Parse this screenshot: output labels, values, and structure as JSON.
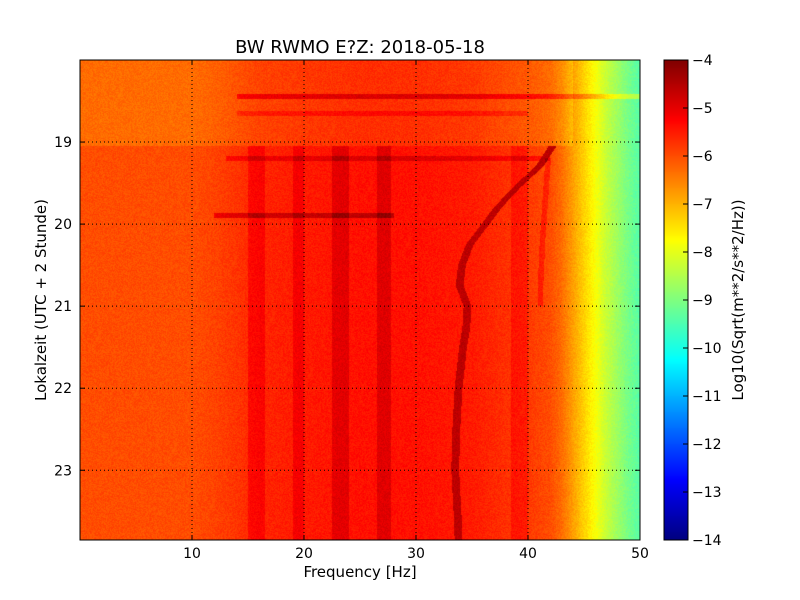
{
  "chart_data": {
    "type": "heatmap",
    "title": "BW RWMO E?Z: 2018-05-18",
    "xlabel": "Frequency [Hz]",
    "ylabel": "Lokalzeit (UTC + 2 Stunde)",
    "xlim": [
      0,
      50
    ],
    "ylim": [
      18.0,
      23.85
    ],
    "y_inverted": true,
    "grid": true,
    "x_ticks": [
      {
        "value": 10,
        "label": "10"
      },
      {
        "value": 20,
        "label": "20"
      },
      {
        "value": 30,
        "label": "30"
      },
      {
        "value": 40,
        "label": "40"
      },
      {
        "value": 50,
        "label": "50"
      }
    ],
    "y_ticks": [
      {
        "value": 19,
        "label": "19"
      },
      {
        "value": 20,
        "label": "20"
      },
      {
        "value": 21,
        "label": "21"
      },
      {
        "value": 22,
        "label": "22"
      },
      {
        "value": 23,
        "label": "23"
      }
    ],
    "colorbar": {
      "label": "Log10(Sqrt(m**2/s**2/Hz))",
      "range": [
        -14,
        -4
      ],
      "colormap": "jet",
      "ticks": [
        {
          "value": -4,
          "label": "−4"
        },
        {
          "value": -5,
          "label": "−5"
        },
        {
          "value": -6,
          "label": "−6"
        },
        {
          "value": -7,
          "label": "−7"
        },
        {
          "value": -8,
          "label": "−8"
        },
        {
          "value": -9,
          "label": "−9"
        },
        {
          "value": -10,
          "label": "−10"
        },
        {
          "value": -11,
          "label": "−11"
        },
        {
          "value": -12,
          "label": "−12"
        },
        {
          "value": -13,
          "label": "−13"
        },
        {
          "value": -14,
          "label": "−14"
        }
      ]
    },
    "background_level_by_frequency": [
      [
        0,
        -6.0
      ],
      [
        5,
        -6.0
      ],
      [
        10,
        -6.0
      ],
      [
        12,
        -5.9
      ],
      [
        16,
        -5.6
      ],
      [
        20,
        -5.5
      ],
      [
        25,
        -5.4
      ],
      [
        30,
        -5.4
      ],
      [
        35,
        -5.5
      ],
      [
        38,
        -5.7
      ],
      [
        40,
        -5.8
      ],
      [
        42,
        -6.0
      ],
      [
        43,
        -6.3
      ],
      [
        44,
        -6.8
      ],
      [
        45,
        -7.3
      ],
      [
        46,
        -7.8
      ],
      [
        47,
        -8.3
      ],
      [
        48,
        -8.7
      ],
      [
        49,
        -9.1
      ],
      [
        50,
        -9.4
      ]
    ],
    "segments": [
      {
        "t0": 18.0,
        "t1": 19.05,
        "shift": -0.3
      },
      {
        "t0": 19.05,
        "t1": 23.85,
        "shift": 0.0
      }
    ],
    "vertical_bands": [
      {
        "f0": 15.0,
        "f1": 16.5,
        "delta": 0.35
      },
      {
        "f0": 19.0,
        "f1": 20.0,
        "delta": 0.35
      },
      {
        "f0": 22.5,
        "f1": 24.0,
        "delta": 0.45
      },
      {
        "f0": 26.5,
        "f1": 27.8,
        "delta": 0.45
      },
      {
        "f0": 38.5,
        "f1": 40.0,
        "delta": 0.3
      }
    ],
    "horizontal_lines": [
      {
        "t": 18.45,
        "f0": 14,
        "f1": 50,
        "delta": 0.8
      },
      {
        "t": 18.65,
        "f0": 14,
        "f1": 40,
        "delta": 0.4
      },
      {
        "t": 19.2,
        "f0": 13,
        "f1": 42,
        "delta": 0.5
      },
      {
        "t": 19.9,
        "f0": 12,
        "f1": 28,
        "delta": 0.8
      }
    ],
    "tonal_curve": [
      [
        19.05,
        42.2
      ],
      [
        19.3,
        41.0
      ],
      [
        19.55,
        39.0
      ],
      [
        19.8,
        37.3
      ],
      [
        20.0,
        36.2
      ],
      [
        20.25,
        34.8
      ],
      [
        20.5,
        34.1
      ],
      [
        20.75,
        33.9
      ],
      [
        21.0,
        34.6
      ],
      [
        21.25,
        34.5
      ],
      [
        21.5,
        34.2
      ],
      [
        21.75,
        34.0
      ],
      [
        22.0,
        33.8
      ],
      [
        22.5,
        33.6
      ],
      [
        23.0,
        33.5
      ],
      [
        23.5,
        33.7
      ],
      [
        23.85,
        33.8
      ]
    ],
    "faint_curve": [
      [
        19.2,
        41.8
      ],
      [
        19.6,
        41.6
      ],
      [
        20.2,
        41.3
      ],
      [
        20.8,
        41.1
      ],
      [
        21.0,
        41.1
      ]
    ]
  },
  "colors": {
    "grid": "#000000",
    "axes": "#000000",
    "tonal_line": "#990000"
  }
}
